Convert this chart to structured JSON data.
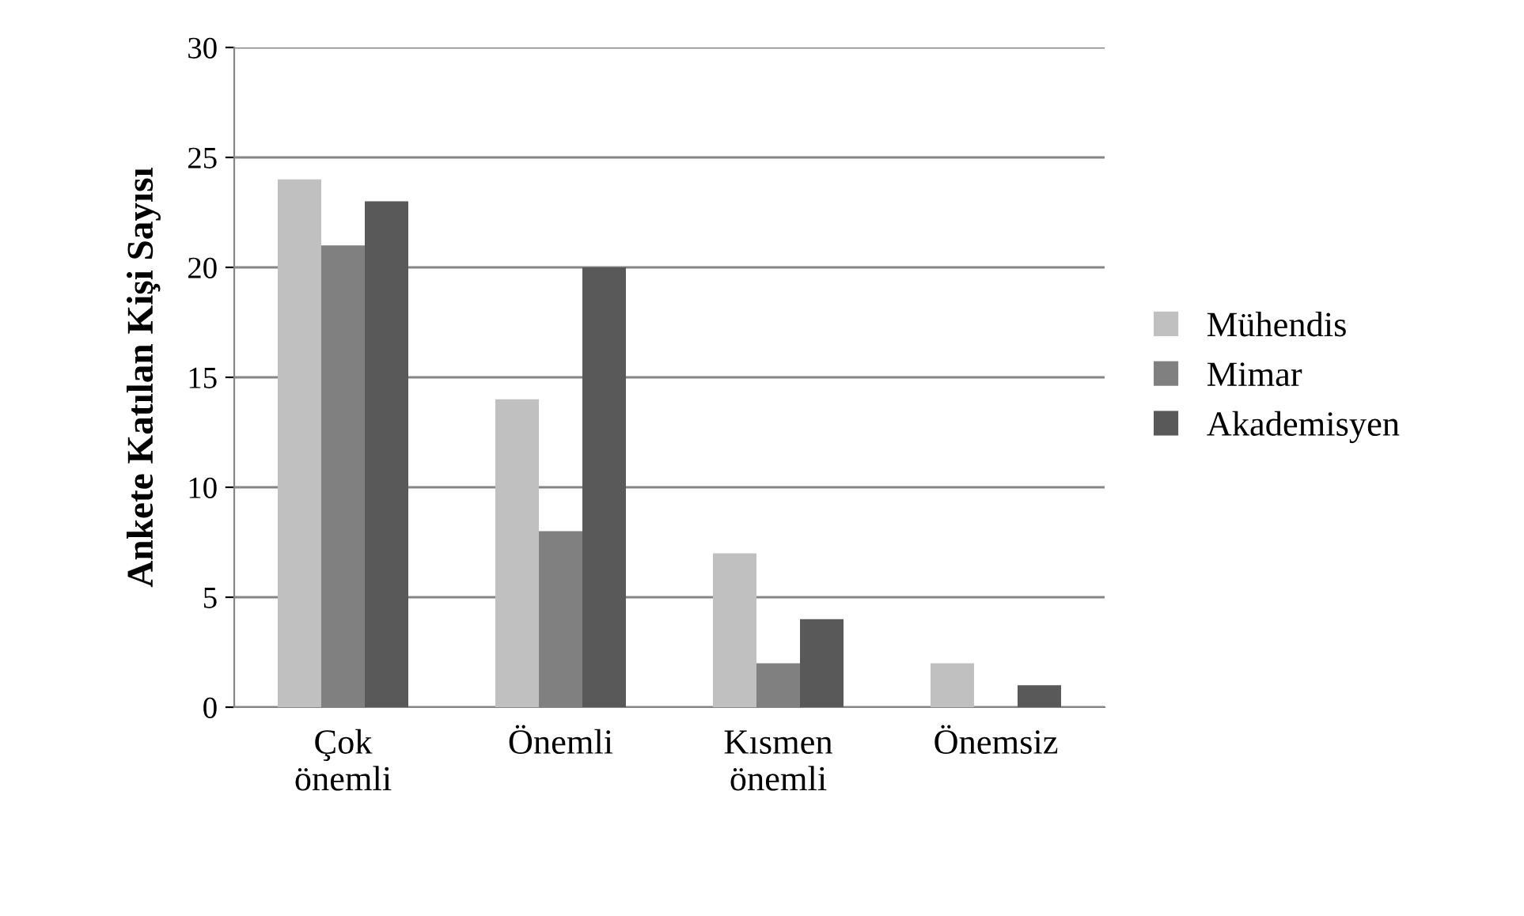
{
  "chart_data": {
    "type": "bar",
    "ylabel": "Ankete Katılan Kişi Sayısı",
    "categories": [
      "Çok önemli",
      "Önemli",
      "Kısmen önemli",
      "Önemsiz"
    ],
    "series": [
      {
        "name": "Mühendis",
        "color": "#c0c0c0",
        "values": [
          24,
          14,
          7,
          2
        ]
      },
      {
        "name": "Mimar",
        "color": "#808080",
        "values": [
          21,
          8,
          2,
          0
        ]
      },
      {
        "name": "Akademisyen",
        "color": "#595959",
        "values": [
          23,
          20,
          4,
          1
        ]
      }
    ],
    "ylim": [
      0,
      30
    ],
    "yticks": [
      0,
      5,
      10,
      15,
      20,
      25,
      30
    ],
    "grid": "y",
    "legend": "right"
  }
}
